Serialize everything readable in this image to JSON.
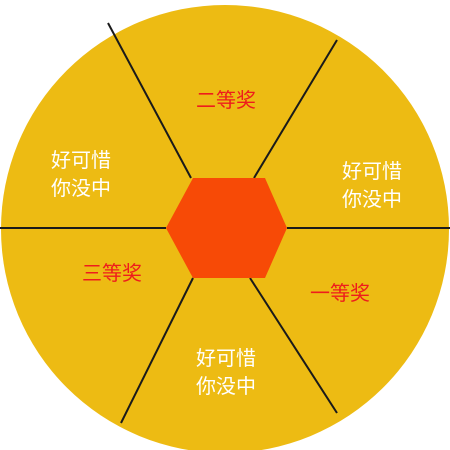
{
  "wheel": {
    "colors": {
      "segment_fill": "#EDBB13",
      "divider": "#1a1a1a",
      "hub_fill": "#F74A06",
      "prize_text": "#EE1C1C",
      "consolation_text": "#FFFFFF"
    },
    "segments": [
      {
        "kind": "prize",
        "lines": [
          "二等奖"
        ]
      },
      {
        "kind": "consolation",
        "lines": [
          "好可惜",
          "你没中"
        ]
      },
      {
        "kind": "prize",
        "lines": [
          "一等奖"
        ]
      },
      {
        "kind": "consolation",
        "lines": [
          "好可惜",
          "你没中"
        ]
      },
      {
        "kind": "prize",
        "lines": [
          "三等奖"
        ]
      },
      {
        "kind": "consolation",
        "lines": [
          "好可惜",
          "你没中"
        ]
      }
    ]
  }
}
